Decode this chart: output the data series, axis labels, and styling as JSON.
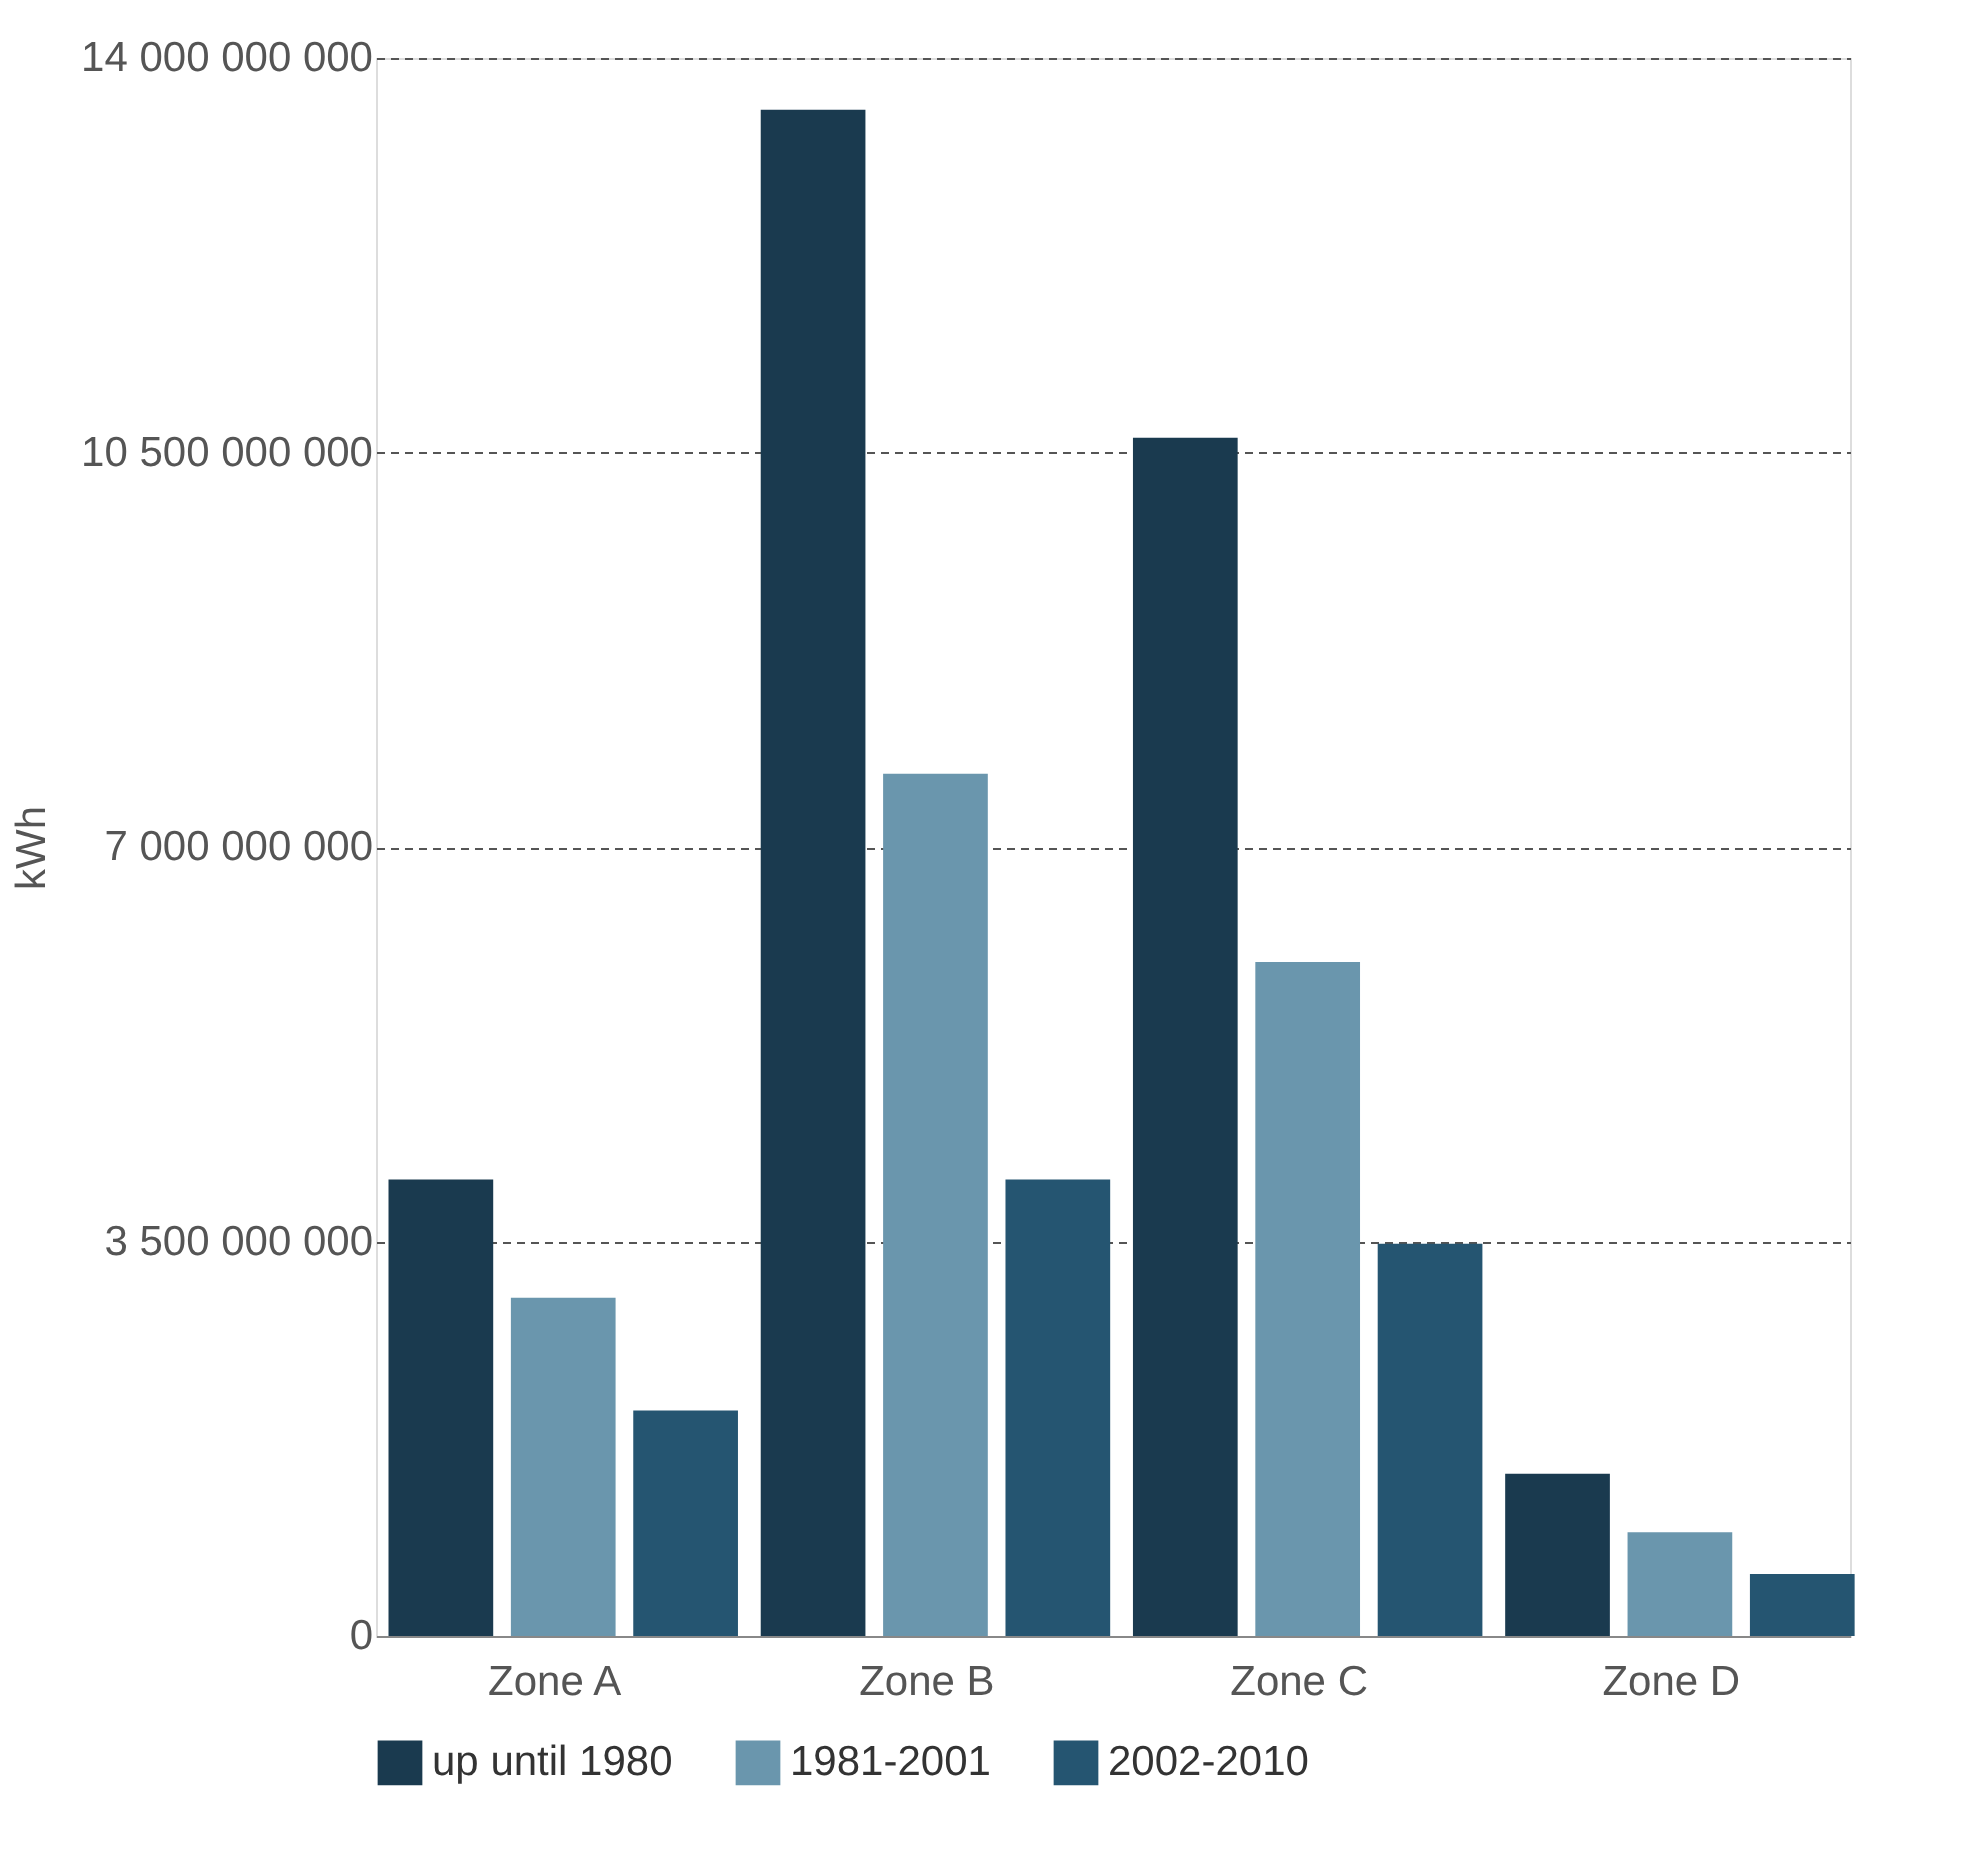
{
  "chart_data": {
    "type": "bar",
    "ylabel": "kWh",
    "categories": [
      "Zone A",
      "Zone B",
      "Zone C",
      "Zone D"
    ],
    "series": [
      {
        "name": "up until 1980",
        "color": "#1a3a4f",
        "values": [
          4050000000,
          13540000000,
          10630000000,
          1440000000
        ]
      },
      {
        "name": "1981-2001",
        "color": "#6a96ad",
        "values": [
          3000000000,
          7650000000,
          5980000000,
          920000000
        ]
      },
      {
        "name": "2002-2010",
        "color": "#255571",
        "values": [
          2000000000,
          4050000000,
          3480000000,
          550000000
        ]
      }
    ],
    "ylim": [
      0,
      14000000000
    ],
    "yticks": [
      {
        "value": 0,
        "label": "0"
      },
      {
        "value": 3500000000,
        "label": "3 500 000 000"
      },
      {
        "value": 7000000000,
        "label": "7 000 000 000"
      },
      {
        "value": 10500000000,
        "label": "10 500 000 000"
      },
      {
        "value": 14000000000,
        "label": "14 000 000 000"
      }
    ],
    "grid": "y",
    "legend": "bottom"
  }
}
